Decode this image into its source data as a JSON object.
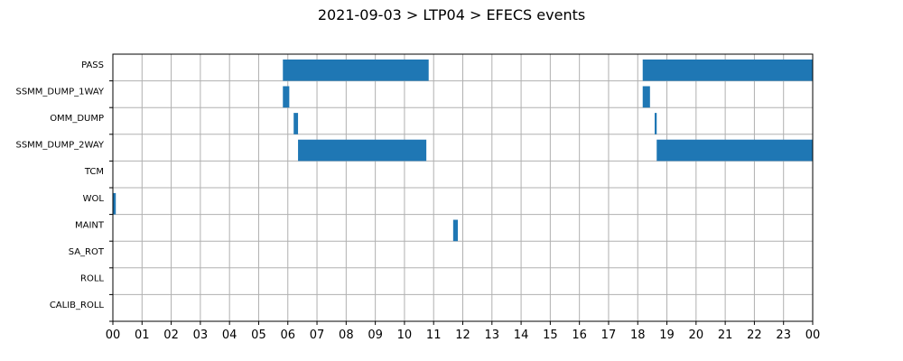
{
  "chart_data": {
    "type": "bar",
    "orientation": "horizontal",
    "title": "2021-09-03 > LTP04 > EFECS events",
    "xlabel": "",
    "ylabel": "",
    "grid": true,
    "x_unit": "hour",
    "xlim": [
      0,
      24
    ],
    "x_tick_labels": [
      "00",
      "01",
      "02",
      "03",
      "04",
      "05",
      "06",
      "07",
      "08",
      "09",
      "10",
      "11",
      "12",
      "13",
      "14",
      "15",
      "16",
      "17",
      "18",
      "19",
      "20",
      "21",
      "22",
      "23",
      "00"
    ],
    "categories": [
      "PASS",
      "SSMM_DUMP_1WAY",
      "OMM_DUMP",
      "SSMM_DUMP_2WAY",
      "TCM",
      "WOL",
      "MAINT",
      "SA_ROT",
      "ROLL",
      "CALIB_ROLL"
    ],
    "bar_color": "#1f77b4",
    "events": [
      {
        "category": "PASS",
        "start": 5.83,
        "end": 10.83
      },
      {
        "category": "PASS",
        "start": 18.17,
        "end": 24.0
      },
      {
        "category": "SSMM_DUMP_1WAY",
        "start": 5.83,
        "end": 6.05
      },
      {
        "category": "SSMM_DUMP_1WAY",
        "start": 18.17,
        "end": 18.42
      },
      {
        "category": "OMM_DUMP",
        "start": 6.2,
        "end": 6.35
      },
      {
        "category": "OMM_DUMP",
        "start": 18.58,
        "end": 18.65
      },
      {
        "category": "SSMM_DUMP_2WAY",
        "start": 6.35,
        "end": 10.75
      },
      {
        "category": "SSMM_DUMP_2WAY",
        "start": 18.65,
        "end": 24.0
      },
      {
        "category": "WOL",
        "start": 0.0,
        "end": 0.1
      },
      {
        "category": "MAINT",
        "start": 11.67,
        "end": 11.83
      }
    ]
  }
}
